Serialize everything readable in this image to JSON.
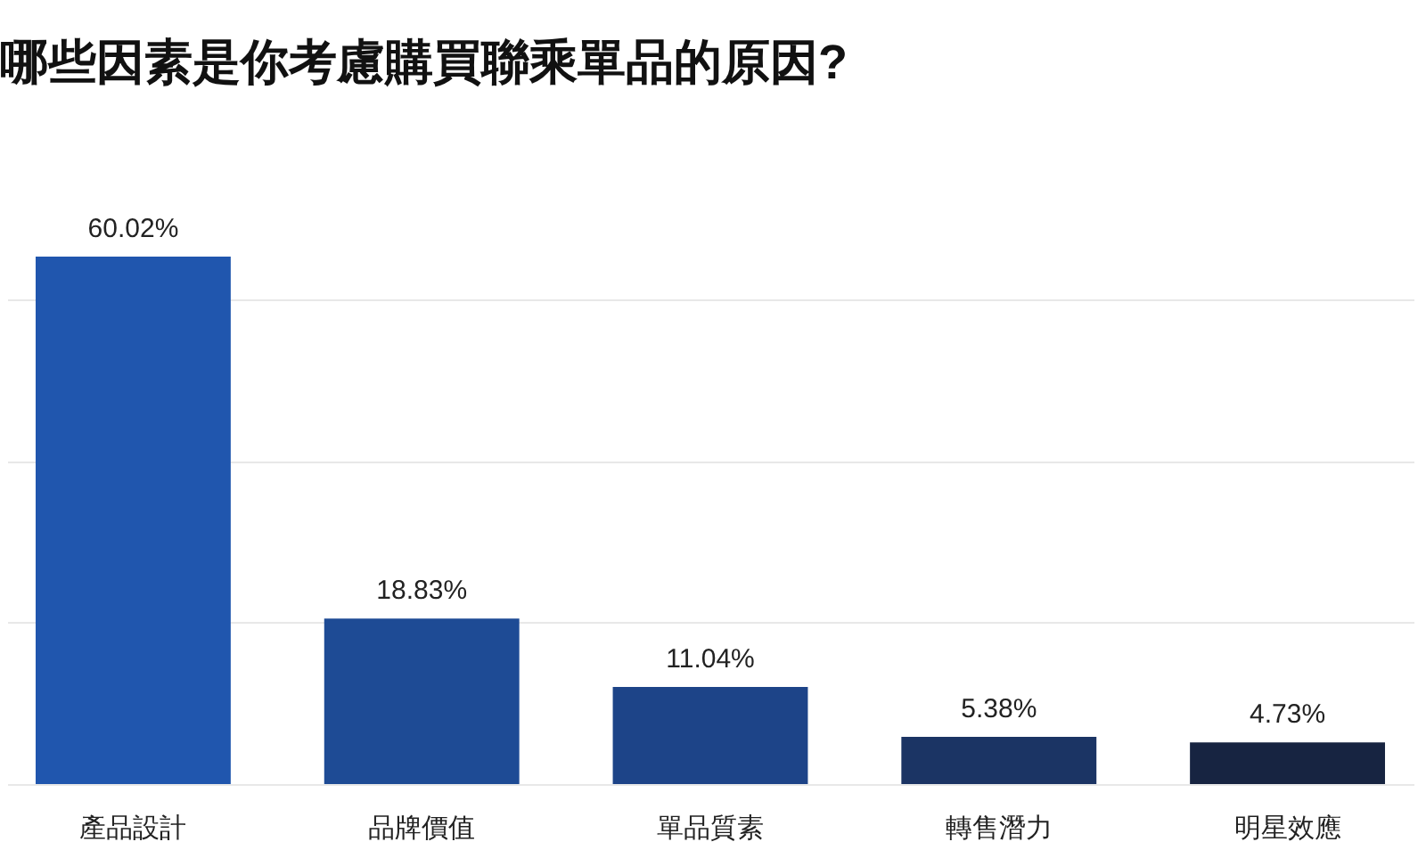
{
  "chart_data": {
    "type": "bar",
    "title": "哪些因素是你考慮購買聯乘單品的原因?",
    "categories": [
      "產品設計",
      "品牌價值",
      "單品質素",
      "轉售潛力",
      "明星效應"
    ],
    "values": [
      60.02,
      18.83,
      11.04,
      5.38,
      4.73
    ],
    "value_labels": [
      "60.02%",
      "18.83%",
      "11.04%",
      "5.38%",
      "4.73%"
    ],
    "colors": [
      "#2056ae",
      "#1e4b95",
      "#1d4488",
      "#1b3464",
      "#172441"
    ],
    "yticks": [
      {
        "value": 0,
        "label": null
      },
      {
        "value": 18.4,
        "label": null
      },
      {
        "value": 36.8,
        "label": null
      },
      {
        "value": 55.2,
        "label": null
      }
    ],
    "grid": "y",
    "tick_labels": "x"
  }
}
